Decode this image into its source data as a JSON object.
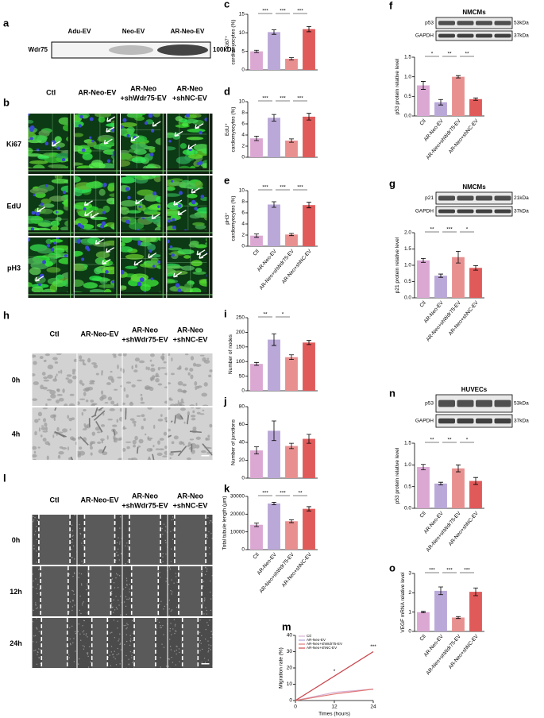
{
  "figure": {
    "a": {
      "label": "a",
      "lanes": [
        "Adu-EV",
        "Neo-EV",
        "AR-Neo-EV"
      ],
      "protein": "Wdr75",
      "size": "100kDa"
    },
    "b": {
      "label": "b",
      "columns": [
        [
          "Ctl"
        ],
        [
          "AR-Neo-EV"
        ],
        [
          "AR-Neo",
          "+shWdr75-EV"
        ],
        [
          "AR-Neo",
          "+shNC-EV"
        ]
      ],
      "rows": [
        "Ki67",
        "EdU",
        "pH3"
      ]
    },
    "h": {
      "label": "h",
      "columns": [
        [
          "Ctl"
        ],
        [
          "AR-Neo-EV"
        ],
        [
          "AR-Neo",
          "+shWdr75-EV"
        ],
        [
          "AR-Neo",
          "+shNC-EV"
        ]
      ],
      "rows": [
        "0h",
        "4h"
      ]
    },
    "l": {
      "label": "l",
      "columns": [
        [
          "Ctl"
        ],
        [
          "AR-Neo-EV"
        ],
        [
          "AR-Neo",
          "+shWdr75-EV"
        ],
        [
          "AR-Neo",
          "+shNC-EV"
        ]
      ],
      "rows": [
        "0h",
        "12h",
        "24h"
      ]
    },
    "f_blot": {
      "cells": "NMCMs",
      "bands": [
        {
          "protein": "p53",
          "size": "53kDa"
        },
        {
          "protein": "GAPDH",
          "size": "37kDa"
        }
      ]
    },
    "g_blot": {
      "cells": "NMCMs",
      "bands": [
        {
          "protein": "p21",
          "size": "21kDa"
        },
        {
          "protein": "GAPDH",
          "size": "37kDa"
        }
      ]
    },
    "n_blot": {
      "cells": "HUVECs",
      "bands": [
        {
          "protein": "p53",
          "size": "53kDa"
        },
        {
          "protein": "GAPDH",
          "size": "37kDa"
        }
      ]
    }
  },
  "chart_data": [
    {
      "type": "bar",
      "label": "c",
      "ylabel": [
        "Ki67⁺",
        "cardiomyocytes (%)"
      ],
      "values": [
        5,
        10.2,
        3,
        11
      ],
      "errors": [
        0.3,
        0.6,
        0.3,
        0.7
      ],
      "colors": [
        "#dba7d3",
        "#b9a8d8",
        "#e89090",
        "#e05a5a"
      ],
      "ylim": [
        0,
        15
      ],
      "yticks": [
        0,
        5,
        10,
        15
      ],
      "annotations": [
        "***",
        "***",
        "***"
      ]
    },
    {
      "type": "bar",
      "label": "d",
      "ylabel": [
        "EdU⁺",
        "cardiomyocytes (%)"
      ],
      "values": [
        3.4,
        7.1,
        3.0,
        7.3
      ],
      "errors": [
        0.4,
        0.6,
        0.3,
        0.6
      ],
      "colors": [
        "#dba7d3",
        "#b9a8d8",
        "#e89090",
        "#e05a5a"
      ],
      "ylim": [
        0,
        10
      ],
      "yticks": [
        0,
        2,
        4,
        6,
        8,
        10
      ],
      "annotations": [
        "***",
        "***",
        "***"
      ]
    },
    {
      "type": "bar",
      "label": "e",
      "ylabel": [
        "pH3⁺",
        "cardiomyocytes (%)"
      ],
      "categories": [
        "Ctl",
        "AR-Neo-EV",
        "AR-Neo+shWdr75-EV",
        "AR-Neo+shNC-EV"
      ],
      "values": [
        1.9,
        7.5,
        2.1,
        7.4
      ],
      "errors": [
        0.3,
        0.5,
        0.2,
        0.5
      ],
      "colors": [
        "#dba7d3",
        "#b9a8d8",
        "#e89090",
        "#e05a5a"
      ],
      "ylim": [
        0,
        10
      ],
      "yticks": [
        0,
        2,
        4,
        6,
        8,
        10
      ],
      "annotations": [
        "***",
        "***",
        "***"
      ]
    },
    {
      "type": "bar",
      "label": "f",
      "ylabel": [
        "p53 protein relative level"
      ],
      "categories": [
        "Ctl",
        "AR-Neo-EV",
        "AR-Neo+shWdr75-EV",
        "AR-Neo+shNC-EV"
      ],
      "values": [
        0.78,
        0.35,
        1.0,
        0.43
      ],
      "errors": [
        0.1,
        0.07,
        0.03,
        0.03
      ],
      "colors": [
        "#dba7d3",
        "#b9a8d8",
        "#e89090",
        "#e05a5a"
      ],
      "ylim": [
        0,
        1.5
      ],
      "yticks": [
        {
          "value": 0,
          "label": "0.0"
        },
        0.5,
        {
          "value": 1,
          "label": "1.0"
        },
        1.5
      ],
      "annotations": [
        "*",
        "**",
        "**"
      ]
    },
    {
      "type": "bar",
      "label": "g",
      "ylabel": [
        "p21 protein relative level"
      ],
      "categories": [
        "Ctl",
        "AR-Neo-EV",
        "AR-Neo+shWdr75-EV",
        "AR-Neo+shNC-EV"
      ],
      "values": [
        1.15,
        0.68,
        1.25,
        0.92
      ],
      "errors": [
        0.06,
        0.05,
        0.18,
        0.07
      ],
      "colors": [
        "#dba7d3",
        "#b9a8d8",
        "#e89090",
        "#e05a5a"
      ],
      "ylim": [
        0,
        2
      ],
      "yticks": [
        {
          "value": 0,
          "label": "0.0"
        },
        0.5,
        {
          "value": 1,
          "label": "1.0"
        },
        1.5,
        {
          "value": 2,
          "label": "2.0"
        }
      ],
      "annotations": [
        "**",
        "***",
        "*"
      ]
    },
    {
      "type": "bar",
      "label": "i",
      "ylabel": [
        "Number of nodes"
      ],
      "values": [
        92,
        175,
        115,
        165
      ],
      "errors": [
        5,
        20,
        8,
        7
      ],
      "colors": [
        "#dba7d3",
        "#b9a8d8",
        "#e89090",
        "#e05a5a"
      ],
      "ylim": [
        0,
        250
      ],
      "yticks": [
        0,
        50,
        100,
        150,
        200,
        250
      ],
      "annotations": [
        "**",
        "*"
      ]
    },
    {
      "type": "bar",
      "label": "j",
      "ylabel": [
        "Number of junctions"
      ],
      "values": [
        31,
        53,
        36,
        44
      ],
      "errors": [
        4,
        11,
        3,
        5
      ],
      "colors": [
        "#dba7d3",
        "#b9a8d8",
        "#e89090",
        "#e05a5a"
      ],
      "ylim": [
        0,
        80
      ],
      "yticks": [
        0,
        20,
        40,
        60,
        80
      ]
    },
    {
      "type": "bar",
      "label": "k",
      "ylabel": [
        "Total tubule length (μm)"
      ],
      "categories": [
        "Ctl",
        "AR-Neo-EV",
        "AR-Neo+shWdr75-EV",
        "AR-Neo+shNC-EV"
      ],
      "values": [
        14000,
        26000,
        16000,
        23000
      ],
      "errors": [
        1000,
        700,
        800,
        1200
      ],
      "colors": [
        "#dba7d3",
        "#b9a8d8",
        "#e89090",
        "#e05a5a"
      ],
      "ylim": [
        0,
        30000
      ],
      "yticks": [
        0,
        10000,
        20000,
        30000
      ],
      "annotations": [
        "***",
        "***",
        "**"
      ]
    },
    {
      "type": "bar",
      "label": "n",
      "ylabel": [
        "p53 protein relative level"
      ],
      "categories": [
        "Ctl",
        "AR-Neo-EV",
        "AR-Neo+shWdr75-EV",
        "AR-Neo+shNC-EV"
      ],
      "values": [
        0.95,
        0.57,
        0.92,
        0.63
      ],
      "errors": [
        0.06,
        0.03,
        0.08,
        0.08
      ],
      "colors": [
        "#dba7d3",
        "#b9a8d8",
        "#e89090",
        "#e05a5a"
      ],
      "ylim": [
        0,
        1.5
      ],
      "yticks": [
        {
          "value": 0,
          "label": "0.0"
        },
        0.5,
        {
          "value": 1,
          "label": "1.0"
        },
        1.5
      ],
      "annotations": [
        "**",
        "**",
        "*"
      ]
    },
    {
      "type": "bar",
      "label": "o",
      "ylabel": [
        "VEGF mRNA relative level"
      ],
      "categories": [
        "Ctl",
        "AR-Neo-EV",
        "AR-Neo+shWdr75-EV",
        "AR-Neo+shNC-EV"
      ],
      "values": [
        1.0,
        2.1,
        0.72,
        2.05
      ],
      "errors": [
        0.04,
        0.2,
        0.05,
        0.2
      ],
      "colors": [
        "#dba7d3",
        "#b9a8d8",
        "#e89090",
        "#e05a5a"
      ],
      "ylim": [
        0,
        3
      ],
      "yticks": [
        0,
        1,
        2,
        3
      ],
      "annotations": [
        "***",
        "***",
        "***"
      ]
    },
    {
      "type": "line",
      "label": "m",
      "ylabel": [
        "Migration rate (%)"
      ],
      "xlabel": "Times (hours)",
      "x": [
        0,
        12,
        24
      ],
      "xlim": [
        0,
        24
      ],
      "xticks": [
        0,
        12,
        24
      ],
      "ylim": [
        0,
        40
      ],
      "yticks": [
        0,
        10,
        20,
        30,
        40
      ],
      "series": [
        {
          "name": "Ctl",
          "color": "#d8b0d0",
          "values": [
            0,
            5,
            7
          ]
        },
        {
          "name": "AR-Neo-EV",
          "color": "#b0a0d8",
          "values": [
            0,
            15,
            30
          ]
        },
        {
          "name": "AR-Neo+shWdr75-EV",
          "color": "#e07878",
          "values": [
            0,
            4,
            7
          ]
        },
        {
          "name": "AR-Neo+shNC-EV",
          "color": "#d04848",
          "values": [
            0,
            15,
            30
          ]
        }
      ],
      "annotations": [
        "*",
        "***"
      ]
    }
  ]
}
